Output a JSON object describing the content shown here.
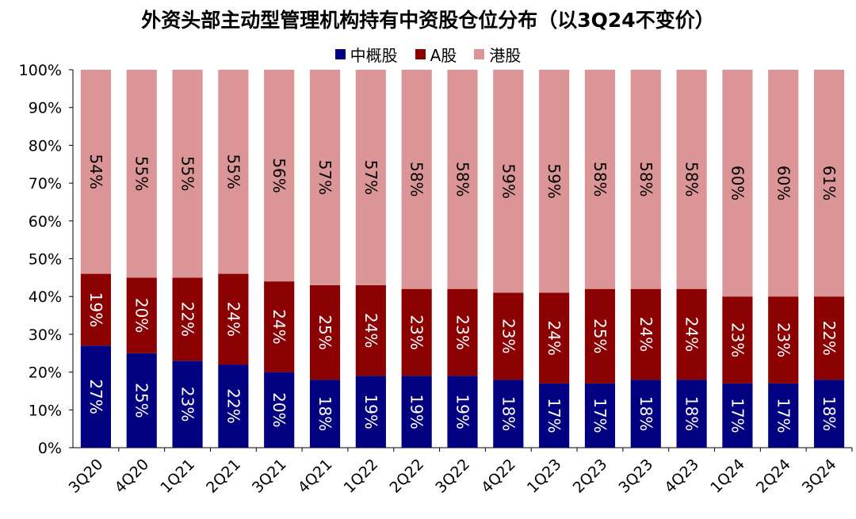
{
  "chart_data": {
    "type": "bar",
    "stacked": true,
    "title": "外资头部主动型管理机构持有中资股仓位分布（以3Q24不变价）",
    "categories": [
      "3Q20",
      "4Q20",
      "1Q21",
      "2Q21",
      "3Q21",
      "4Q21",
      "1Q22",
      "2Q22",
      "3Q22",
      "4Q22",
      "1Q23",
      "2Q23",
      "3Q23",
      "4Q23",
      "1Q24",
      "2Q24",
      "3Q24"
    ],
    "series": [
      {
        "name": "中概股",
        "color": "#000080",
        "values": [
          27,
          25,
          23,
          22,
          20,
          18,
          19,
          19,
          19,
          18,
          17,
          17,
          18,
          18,
          17,
          17,
          18
        ],
        "labels": [
          "27%",
          "25%",
          "23%",
          "22%",
          "20%",
          "18%",
          "19%",
          "19%",
          "19%",
          "18%",
          "17%",
          "17%",
          "18%",
          "18%",
          "17%",
          "17%",
          "18%"
        ],
        "label_color": "#ffffff"
      },
      {
        "name": "A股",
        "color": "#8b0000",
        "values": [
          19,
          20,
          22,
          24,
          24,
          25,
          24,
          23,
          23,
          23,
          24,
          25,
          24,
          24,
          23,
          23,
          22
        ],
        "labels": [
          "19%",
          "20%",
          "22%",
          "24%",
          "24%",
          "25%",
          "24%",
          "23%",
          "23%",
          "23%",
          "24%",
          "25%",
          "24%",
          "24%",
          "23%",
          "23%",
          "22%"
        ],
        "label_color": "#ffffff"
      },
      {
        "name": "港股",
        "color": "#dc9596",
        "values": [
          54,
          55,
          55,
          55,
          56,
          57,
          57,
          58,
          58,
          59,
          59,
          58,
          58,
          58,
          60,
          60,
          61
        ],
        "labels": [
          "54%",
          "55%",
          "55%",
          "55%",
          "56%",
          "57%",
          "57%",
          "58%",
          "58%",
          "59%",
          "59%",
          "58%",
          "58%",
          "58%",
          "60%",
          "60%",
          "61%"
        ],
        "label_color": "#000000"
      }
    ],
    "ylim": [
      0,
      100
    ],
    "yticks": [
      "0%",
      "10%",
      "20%",
      "30%",
      "40%",
      "50%",
      "60%",
      "70%",
      "80%",
      "90%",
      "100%"
    ],
    "legend_position": "top",
    "grid": false
  }
}
